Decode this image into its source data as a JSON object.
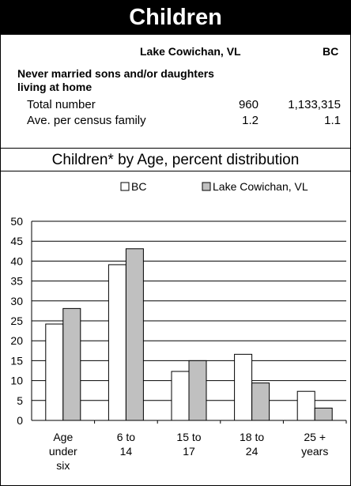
{
  "header": {
    "title": "Children"
  },
  "table": {
    "col_local": "Lake Cowichan, VL",
    "col_bc": "BC",
    "section_title": "Never married sons and/or daughters living at home",
    "rows": [
      {
        "label": "Total number",
        "local": "960",
        "bc": "1,133,315"
      },
      {
        "label": "Ave. per census family",
        "local": "1.2",
        "bc": "1.1"
      }
    ]
  },
  "chart_data": {
    "type": "bar",
    "title": "Children* by Age, percent distribution",
    "categories": [
      [
        "Age",
        "under",
        "six"
      ],
      [
        "6 to",
        "14"
      ],
      [
        "15 to",
        "17"
      ],
      [
        "18 to",
        "24"
      ],
      [
        "25 +",
        "years"
      ]
    ],
    "series": [
      {
        "name": "BC",
        "color": "#ffffff",
        "values": [
          24.2,
          39.1,
          12.3,
          16.6,
          7.3
        ]
      },
      {
        "name": "Lake Cowichan, VL",
        "color": "#c0c0c0",
        "values": [
          28.1,
          43.1,
          15.0,
          9.4,
          3.1
        ]
      }
    ],
    "ylim": [
      0,
      50
    ],
    "yticks": [
      0,
      5,
      10,
      15,
      20,
      25,
      30,
      35,
      40,
      45,
      50
    ],
    "grid": true,
    "legend_position": "top"
  }
}
